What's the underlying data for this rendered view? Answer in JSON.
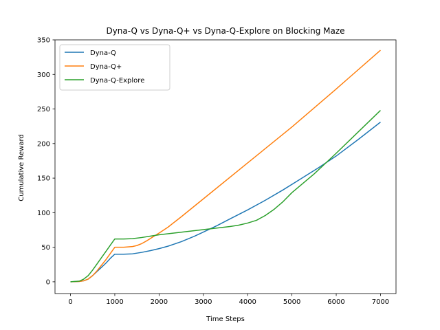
{
  "chart_data": {
    "type": "line",
    "title": "Dyna-Q vs Dyna-Q+ vs Dyna-Q-Explore on Blocking Maze",
    "xlabel": "Time Steps",
    "ylabel": "Cumulative Reward",
    "xlim": [
      -350,
      7350
    ],
    "ylim": [
      -17,
      350
    ],
    "xticks": [
      0,
      1000,
      2000,
      3000,
      4000,
      5000,
      6000,
      7000
    ],
    "yticks": [
      0,
      50,
      100,
      150,
      200,
      250,
      300,
      350
    ],
    "legend_position": "top-left",
    "grid": false,
    "series": [
      {
        "name": "Dyna-Q",
        "color": "#1f77b4",
        "x": [
          0,
          200,
          300,
          400,
          500,
          600,
          700,
          800,
          900,
          1000,
          1200,
          1400,
          1600,
          1800,
          2000,
          2200,
          2500,
          2800,
          3000,
          3300,
          3600,
          4000,
          4400,
          4800,
          5200,
          5600,
          6000,
          6500,
          7000
        ],
        "y": [
          0,
          0.5,
          1.5,
          4,
          9,
          15,
          21,
          27,
          34,
          40,
          40,
          40.5,
          42.5,
          45,
          48,
          51.5,
          58,
          66,
          72,
          81,
          91,
          104,
          118,
          133,
          149,
          165,
          182,
          206,
          231
        ]
      },
      {
        "name": "Dyna-Q+",
        "color": "#ff7f0e",
        "x": [
          0,
          200,
          300,
          400,
          500,
          600,
          700,
          800,
          900,
          1000,
          1200,
          1400,
          1500,
          1600,
          1700,
          1800,
          1900,
          2000,
          2200,
          2500,
          3000,
          4000,
          5000,
          6000,
          7000
        ],
        "y": [
          0,
          0.5,
          1.5,
          4,
          9,
          16,
          24,
          32,
          41,
          50,
          50,
          51,
          52.5,
          55,
          58.5,
          62.5,
          66.5,
          70.5,
          79,
          94,
          120,
          172,
          224,
          279,
          335
        ]
      },
      {
        "name": "Dyna-Q-Explore",
        "color": "#2ca02c",
        "x": [
          0,
          200,
          300,
          400,
          500,
          600,
          700,
          800,
          900,
          1000,
          1200,
          1400,
          1600,
          1800,
          2000,
          2400,
          2800,
          3200,
          3600,
          3800,
          4000,
          4200,
          4400,
          4600,
          4800,
          5000,
          5500,
          6000,
          6500,
          7000
        ],
        "y": [
          0,
          1,
          4,
          9,
          17,
          26,
          35,
          44,
          53,
          62,
          62,
          62.5,
          64,
          66,
          68,
          71,
          74,
          77,
          80,
          82,
          85,
          89,
          96,
          105,
          116,
          129,
          156,
          186,
          217,
          248
        ]
      }
    ]
  }
}
